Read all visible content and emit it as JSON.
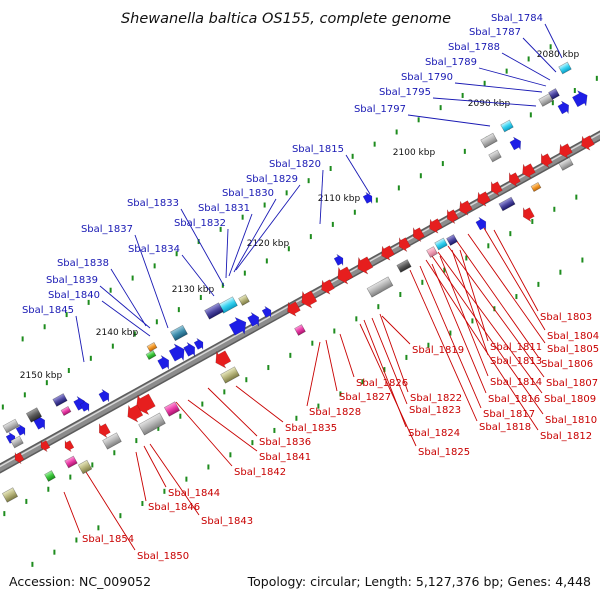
{
  "title": "Shewanella baltica OS155, complete genome",
  "footer": {
    "accession": "Accession: NC_009052",
    "summary": "Topology: circular; Length: 5,127,376 bp; Genes: 4,448"
  },
  "colors": {
    "forward_strand": "#1e1ee6",
    "reverse_strand": "#e61e1e",
    "backbone": "#8c8c8c",
    "ticks": "#1e8c1e",
    "top_label": "#1a1ab4",
    "bottom_label": "#c80000"
  },
  "ticks": [
    {
      "label": "2080 kbp"
    },
    {
      "label": "2090 kbp"
    },
    {
      "label": "2100 kbp"
    },
    {
      "label": "2110 kbp"
    },
    {
      "label": "2120 kbp"
    },
    {
      "label": "2130 kbp"
    },
    {
      "label": "2140 kbp"
    },
    {
      "label": "2150 kbp"
    }
  ],
  "top_genes": [
    "Sbal_1784",
    "Sbal_1787",
    "Sbal_1788",
    "Sbal_1789",
    "Sbal_1790",
    "Sbal_1795",
    "Sbal_1797",
    "Sbal_1815",
    "Sbal_1820",
    "Sbal_1829",
    "Sbal_1830",
    "Sbal_1831",
    "Sbal_1832",
    "Sbal_1833",
    "Sbal_1834",
    "Sbal_1837",
    "Sbal_1838",
    "Sbal_1839",
    "Sbal_1840",
    "Sbal_1845"
  ],
  "bottom_genes": [
    "Sbal_1803",
    "Sbal_1804",
    "Sbal_1805",
    "Sbal_1806",
    "Sbal_1807",
    "Sbal_1809",
    "Sbal_1810",
    "Sbal_1811",
    "Sbal_1812",
    "Sbal_1813",
    "Sbal_1814",
    "Sbal_1816",
    "Sbal_1817",
    "Sbal_1818",
    "Sbal_1819",
    "Sbal_1822",
    "Sbal_1823",
    "Sbal_1824",
    "Sbal_1825",
    "Sbal_1826",
    "Sbal_1827",
    "Sbal_1828",
    "Sbal_1835",
    "Sbal_1836",
    "Sbal_1841",
    "Sbal_1842",
    "Sbal_1843",
    "Sbal_1844",
    "Sbal_1846",
    "Sbal_1850",
    "Sbal_1854"
  ]
}
